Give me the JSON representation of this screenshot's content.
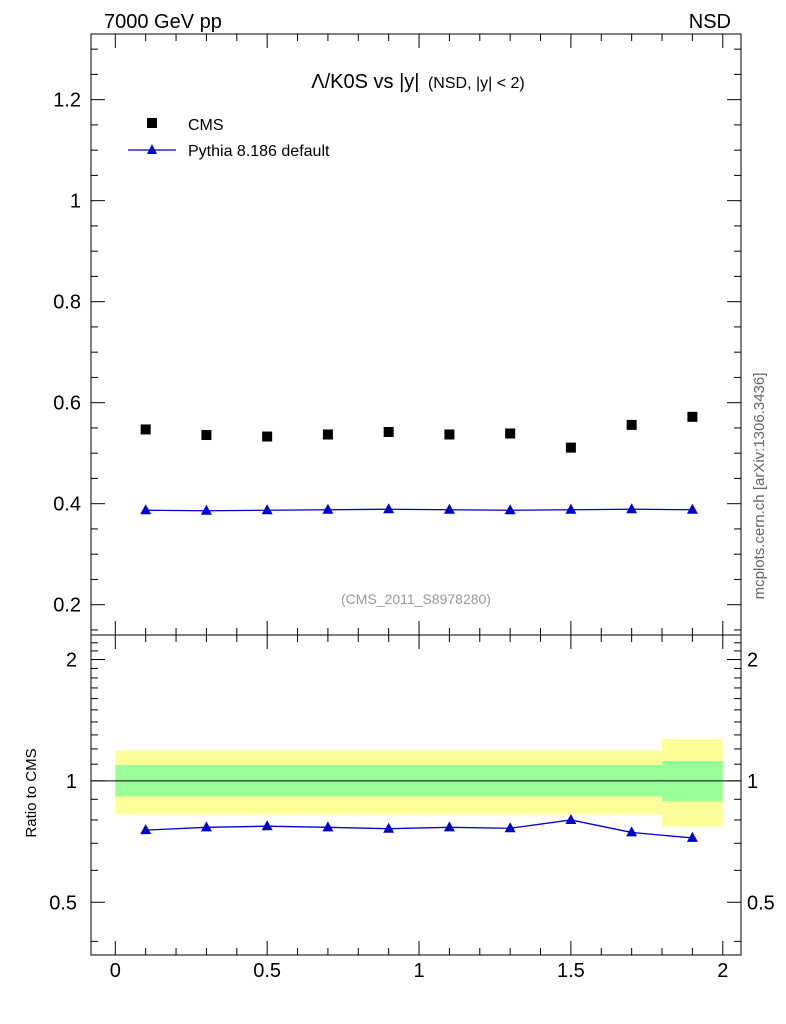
{
  "header": {
    "left": "7000 GeV pp",
    "right": "NSD"
  },
  "plot_title": {
    "main": "Λ/K0S vs |y|",
    "sub": "(NSD, |y| < 2)"
  },
  "analysis_id": "(CMS_2011_S8978280)",
  "side_label": "mcplots.cern.ch [arXiv:1306.3436]",
  "colors": {
    "data": "#000000",
    "mc": "#0000cc",
    "band_inner": "#99ff99",
    "band_outer": "#ffff99"
  },
  "chart_data": [
    {
      "type": "scatter",
      "title": "Λ/K0S vs |y|",
      "xlim": [
        -0.08,
        2.06
      ],
      "ylim": [
        0.14,
        1.33
      ],
      "grid": false,
      "legend_position": "top-left",
      "yticks": [
        0.2,
        0.4,
        0.6,
        0.8,
        1,
        1.2
      ],
      "ytick_labels": [
        "0.2",
        "0.4",
        "0.6",
        "0.8",
        "1",
        "1.2"
      ],
      "series": [
        {
          "name": "CMS",
          "marker": "square",
          "x": [
            0.1,
            0.3,
            0.5,
            0.7,
            0.9,
            1.1,
            1.3,
            1.5,
            1.7,
            1.9
          ],
          "y": [
            0.547,
            0.536,
            0.533,
            0.537,
            0.542,
            0.537,
            0.539,
            0.511,
            0.556,
            0.572
          ]
        },
        {
          "name": "Pythia 8.186 default",
          "marker": "triangle",
          "line": true,
          "x": [
            0.1,
            0.3,
            0.5,
            0.7,
            0.9,
            1.1,
            1.3,
            1.5,
            1.7,
            1.9
          ],
          "y": [
            0.387,
            0.386,
            0.387,
            0.388,
            0.389,
            0.388,
            0.387,
            0.388,
            0.389,
            0.388
          ]
        }
      ]
    },
    {
      "type": "line",
      "ylabel": "Ratio to CMS",
      "xlim": [
        -0.08,
        2.06
      ],
      "ylim": [
        0.37,
        2.3
      ],
      "ylog": true,
      "xticks": [
        0,
        0.5,
        1,
        1.5,
        2
      ],
      "xtick_labels": [
        "0",
        "0.5",
        "1",
        "1.5",
        "2"
      ],
      "yticks": [
        0.5,
        1,
        2
      ],
      "ytick_labels": [
        "0.5",
        "1",
        "2"
      ],
      "reference_line": 1,
      "bands": [
        {
          "x0": 0.0,
          "x1": 1.8,
          "inner": [
            0.915,
            1.095
          ],
          "outer": [
            0.825,
            1.19
          ]
        },
        {
          "x0": 1.8,
          "x1": 2.0,
          "inner": [
            0.89,
            1.12
          ],
          "outer": [
            0.77,
            1.27
          ]
        }
      ],
      "series": [
        {
          "name": "Pythia 8.186 default",
          "x": [
            0.1,
            0.3,
            0.5,
            0.7,
            0.9,
            1.1,
            1.3,
            1.5,
            1.7,
            1.9
          ],
          "y": [
            0.755,
            0.767,
            0.772,
            0.767,
            0.761,
            0.767,
            0.763,
            0.8,
            0.745,
            0.722
          ]
        }
      ]
    }
  ]
}
